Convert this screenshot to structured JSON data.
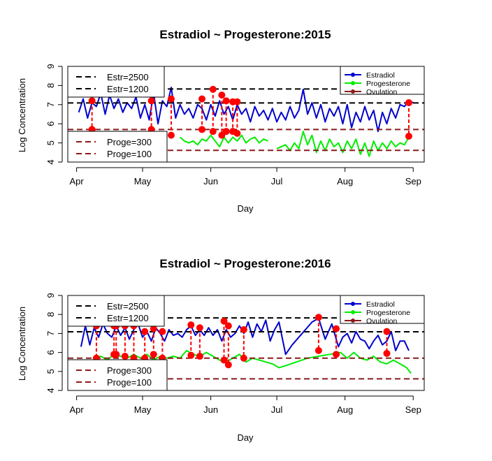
{
  "chart_data": [
    {
      "type": "line",
      "title": "Estradiol ~ Progesterone:2015",
      "xlabel": "Day",
      "ylabel": "Log Concentration",
      "ylim": [
        4,
        9
      ],
      "yticks": [
        4,
        5,
        6,
        7,
        8,
        9
      ],
      "xlim": [
        "2015-03-28",
        "2015-09-06"
      ],
      "xticks": [
        {
          "date": "2015-04-01",
          "label": "Apr"
        },
        {
          "date": "2015-05-01",
          "label": "May"
        },
        {
          "date": "2015-06-01",
          "label": "Jun"
        },
        {
          "date": "2015-07-01",
          "label": "Jul"
        },
        {
          "date": "2015-08-01",
          "label": "Aug"
        },
        {
          "date": "2015-09-01",
          "label": "Sep"
        }
      ],
      "reference_lines": [
        {
          "label": "Estr=2500",
          "value": 7.82,
          "color": "#000000"
        },
        {
          "label": "Estr=1200",
          "value": 7.09,
          "color": "#000000"
        },
        {
          "label": "Proge=300",
          "value": 5.7,
          "color": "#8b1a1a"
        },
        {
          "label": "Proge=100",
          "value": 4.61,
          "color": "#8b1a1a"
        }
      ],
      "legend_top_left": [
        "Estr=2500",
        "Estr=1200"
      ],
      "legend_bottom_left": [
        "Proge=300",
        "Proge=100"
      ],
      "legend_right": [
        {
          "label": "Estradiol",
          "color": "#0000cd"
        },
        {
          "label": "Progesterone",
          "color": "#00ee00"
        },
        {
          "label": "Ovulation",
          "color": "#8b1a1a"
        }
      ],
      "series": [
        {
          "name": "Estradiol",
          "color": "#0000cd",
          "x": [
            "2015-04-02",
            "2015-04-04",
            "2015-04-06",
            "2015-04-08",
            "2015-04-10",
            "2015-04-12",
            "2015-04-14",
            "2015-04-16",
            "2015-04-18",
            "2015-04-20",
            "2015-04-22",
            "2015-04-24",
            "2015-04-26",
            "2015-04-28",
            "2015-04-30",
            "2015-05-02",
            "2015-05-04",
            "2015-05-06",
            "2015-05-08",
            "2015-05-10",
            "2015-05-12",
            "2015-05-14",
            "2015-05-16",
            "2015-05-18",
            "2015-05-20",
            "2015-05-22",
            "2015-05-24",
            "2015-05-26",
            "2015-05-28",
            "2015-05-30",
            "2015-06-01",
            "2015-06-03",
            "2015-06-05",
            "2015-06-07",
            "2015-06-09",
            "2015-06-11",
            "2015-06-13",
            "2015-06-15",
            "2015-06-17",
            "2015-06-19",
            "2015-06-21",
            "2015-06-23",
            "2015-06-25",
            "2015-06-27",
            "2015-06-29",
            "2015-07-01",
            "2015-07-03",
            "2015-07-05",
            "2015-07-07",
            "2015-07-09",
            "2015-07-11",
            "2015-07-13",
            "2015-07-15",
            "2015-07-17",
            "2015-07-19",
            "2015-07-21",
            "2015-07-23",
            "2015-07-25",
            "2015-07-27",
            "2015-07-29",
            "2015-07-31",
            "2015-08-02",
            "2015-08-04",
            "2015-08-06",
            "2015-08-08",
            "2015-08-10",
            "2015-08-12",
            "2015-08-14",
            "2015-08-16",
            "2015-08-18",
            "2015-08-20",
            "2015-08-22",
            "2015-08-24",
            "2015-08-26",
            "2015-08-28",
            "2015-08-30",
            "2015-09-01"
          ],
          "values": [
            6.6,
            7.3,
            6.3,
            7.1,
            6.9,
            7.6,
            6.5,
            7.5,
            6.8,
            7.3,
            6.6,
            7.1,
            6.8,
            7.4,
            6.3,
            7.0,
            6.2,
            7.6,
            6.0,
            7.2,
            6.9,
            7.9,
            6.3,
            7.0,
            6.5,
            6.8,
            6.3,
            7.0,
            6.8,
            6.2,
            7.0,
            6.4,
            7.2,
            6.5,
            6.9,
            6.2,
            7.0,
            6.5,
            6.8,
            6.1,
            6.9,
            6.4,
            6.7,
            6.2,
            6.8,
            6.1,
            6.6,
            6.2,
            6.9,
            6.3,
            6.7,
            7.8,
            6.5,
            7.1,
            6.3,
            7.0,
            6.1,
            6.8,
            6.4,
            6.9,
            6.0,
            7.0,
            5.8,
            6.6,
            6.1,
            6.9,
            6.2,
            6.7,
            5.6,
            6.6,
            6.0,
            6.8,
            6.3,
            7.0,
            6.9,
            7.2,
            7.1
          ]
        },
        {
          "name": "Progesterone",
          "color": "#00ee00",
          "x": [
            "2015-05-18",
            "2015-05-20",
            "2015-05-22",
            "2015-05-24",
            "2015-05-26",
            "2015-05-28",
            "2015-05-30",
            "2015-06-01",
            "2015-06-03",
            "2015-06-05",
            "2015-06-07",
            "2015-06-09",
            "2015-06-11",
            "2015-06-13",
            "2015-06-15",
            "2015-06-17",
            "2015-06-19",
            "2015-06-21",
            "2015-06-23",
            "2015-06-25",
            "2015-06-27",
            "2015-06-29",
            "2015-07-01",
            "2015-07-03",
            "2015-07-05",
            "2015-07-07",
            "2015-07-09",
            "2015-07-11",
            "2015-07-13",
            "2015-07-15",
            "2015-07-17",
            "2015-07-19",
            "2015-07-21",
            "2015-07-23",
            "2015-07-25",
            "2015-07-27",
            "2015-07-29",
            "2015-07-31",
            "2015-08-02",
            "2015-08-04",
            "2015-08-06",
            "2015-08-08",
            "2015-08-10",
            "2015-08-12",
            "2015-08-14",
            "2015-08-16",
            "2015-08-18",
            "2015-08-20",
            "2015-08-22",
            "2015-08-24",
            "2015-08-26",
            "2015-08-28",
            "2015-08-30"
          ],
          "values": [
            5.3,
            5.1,
            5.0,
            5.1,
            4.9,
            5.2,
            5.1,
            5.4,
            5.1,
            4.8,
            5.3,
            5.0,
            5.3,
            5.1,
            5.4,
            5.0,
            5.2,
            5.3,
            5.0,
            5.2,
            5.1,
            null,
            4.7,
            4.8,
            4.9,
            4.6,
            5.0,
            4.7,
            5.6,
            4.9,
            5.4,
            4.5,
            5.1,
            4.6,
            5.2,
            4.8,
            5.0,
            4.5,
            5.1,
            4.7,
            5.2,
            4.4,
            5.0,
            4.3,
            5.1,
            4.6,
            5.0,
            4.7,
            5.1,
            4.8,
            5.0,
            4.9,
            5.3
          ]
        }
      ],
      "ovulation_markers": [
        {
          "x": "2015-04-08",
          "estradiol": 7.2,
          "progesterone": 5.7
        },
        {
          "x": "2015-05-05",
          "estradiol": 7.2,
          "progesterone": 5.7
        },
        {
          "x": "2015-05-14",
          "estradiol": 7.3,
          "progesterone": 5.4
        },
        {
          "x": "2015-05-28",
          "estradiol": 7.3,
          "progesterone": 5.7
        },
        {
          "x": "2015-06-02",
          "estradiol": 7.8,
          "progesterone": 5.6
        },
        {
          "x": "2015-06-06",
          "estradiol": 7.5,
          "progesterone": 5.4
        },
        {
          "x": "2015-06-08",
          "estradiol": 7.2,
          "progesterone": 5.6
        },
        {
          "x": "2015-06-11",
          "estradiol": 7.15,
          "progesterone": 5.6
        },
        {
          "x": "2015-06-13",
          "estradiol": 7.15,
          "progesterone": 5.5
        },
        {
          "x": "2015-08-30",
          "estradiol": 7.1,
          "progesterone": 5.35
        }
      ]
    },
    {
      "type": "line",
      "title": "Estradiol ~ Progesterone:2016",
      "xlabel": "Day",
      "ylabel": "Log Concentration",
      "ylim": [
        4,
        9
      ],
      "yticks": [
        4,
        5,
        6,
        7,
        8,
        9
      ],
      "xlim": [
        "2016-03-28",
        "2016-09-06"
      ],
      "xticks": [
        {
          "date": "2016-04-01",
          "label": "Apr"
        },
        {
          "date": "2016-05-01",
          "label": "May"
        },
        {
          "date": "2016-06-01",
          "label": "Jun"
        },
        {
          "date": "2016-07-01",
          "label": "Jul"
        },
        {
          "date": "2016-08-01",
          "label": "Aug"
        },
        {
          "date": "2016-09-01",
          "label": "Sep"
        }
      ],
      "reference_lines": [
        {
          "label": "Estr=2500",
          "value": 7.82,
          "color": "#000000"
        },
        {
          "label": "Estr=1200",
          "value": 7.09,
          "color": "#000000"
        },
        {
          "label": "Proge=300",
          "value": 5.7,
          "color": "#8b1a1a"
        },
        {
          "label": "Proge=100",
          "value": 4.61,
          "color": "#8b1a1a"
        }
      ],
      "legend_top_left": [
        "Estr=2500",
        "Estr=1200"
      ],
      "legend_bottom_left": [
        "Proge=300",
        "Proge=100"
      ],
      "legend_right": [
        {
          "label": "Estradiol",
          "color": "#0000cd"
        },
        {
          "label": "Progesterone",
          "color": "#00ee00"
        },
        {
          "label": "Ovulation",
          "color": "#8b1a1a"
        }
      ],
      "series": [
        {
          "name": "Estradiol",
          "color": "#0000cd",
          "x": [
            "2016-04-03",
            "2016-04-05",
            "2016-04-07",
            "2016-04-09",
            "2016-04-11",
            "2016-04-13",
            "2016-04-15",
            "2016-04-17",
            "2016-04-19",
            "2016-04-21",
            "2016-04-23",
            "2016-04-25",
            "2016-04-27",
            "2016-04-29",
            "2016-05-01",
            "2016-05-03",
            "2016-05-05",
            "2016-05-07",
            "2016-05-09",
            "2016-05-11",
            "2016-05-13",
            "2016-05-15",
            "2016-05-17",
            "2016-05-19",
            "2016-05-21",
            "2016-05-23",
            "2016-05-25",
            "2016-05-27",
            "2016-05-29",
            "2016-05-31",
            "2016-06-02",
            "2016-06-04",
            "2016-06-06",
            "2016-06-08",
            "2016-06-10",
            "2016-06-12",
            "2016-06-14",
            "2016-06-16",
            "2016-06-18",
            "2016-06-20",
            "2016-06-22",
            "2016-06-24",
            "2016-06-26",
            "2016-06-28",
            "2016-06-30",
            "2016-07-02",
            "2016-07-05",
            "2016-07-08",
            "2016-07-11",
            "2016-07-14",
            "2016-07-17",
            "2016-07-20",
            "2016-07-23",
            "2016-07-26",
            "2016-07-29",
            "2016-07-31",
            "2016-08-02",
            "2016-08-04",
            "2016-08-06",
            "2016-08-08",
            "2016-08-10",
            "2016-08-12",
            "2016-08-14",
            "2016-08-16",
            "2016-08-18",
            "2016-08-20",
            "2016-08-22",
            "2016-08-24",
            "2016-08-26",
            "2016-08-28",
            "2016-08-30"
          ],
          "values": [
            6.3,
            7.4,
            6.4,
            7.3,
            6.8,
            7.5,
            7.0,
            6.8,
            7.4,
            6.9,
            7.3,
            6.7,
            7.2,
            7.5,
            6.8,
            7.1,
            6.6,
            7.3,
            7.0,
            6.6,
            7.2,
            6.9,
            7.0,
            6.8,
            7.2,
            7.4,
            6.9,
            7.2,
            6.9,
            7.3,
            6.9,
            7.2,
            6.6,
            7.2,
            6.8,
            7.0,
            7.4,
            7.0,
            7.6,
            6.8,
            7.5,
            7.1,
            7.7,
            6.6,
            7.2,
            7.6,
            5.9,
            6.4,
            6.8,
            7.2,
            7.6,
            7.8,
            6.7,
            7.5,
            6.3,
            6.8,
            7.0,
            6.5,
            7.1,
            6.7,
            6.6,
            6.2,
            6.6,
            6.9,
            6.4,
            6.6,
            7.1,
            6.1,
            6.6,
            6.6,
            6.1
          ]
        },
        {
          "name": "Progesterone",
          "color": "#00ee00",
          "x": [
            "2016-04-09",
            "2016-04-12",
            "2016-04-15",
            "2016-04-18",
            "2016-04-21",
            "2016-04-24",
            "2016-04-27",
            "2016-04-30",
            "2016-05-03",
            "2016-05-06",
            "2016-05-09",
            "2016-05-12",
            "2016-05-15",
            "2016-05-18",
            "2016-05-21",
            "2016-05-24",
            "2016-05-27",
            "2016-05-30",
            "2016-06-02",
            "2016-06-05",
            "2016-06-08",
            "2016-06-11",
            "2016-06-14",
            "2016-06-17",
            "2016-06-20",
            "2016-06-23",
            "2016-06-26",
            "2016-06-29",
            "2016-07-02",
            "2016-07-05",
            "2016-07-10",
            "2016-07-15",
            "2016-07-20",
            "2016-07-25",
            "2016-07-30",
            "2016-08-02",
            "2016-08-05",
            "2016-08-08",
            "2016-08-11",
            "2016-08-14",
            "2016-08-17",
            "2016-08-20",
            "2016-08-23",
            "2016-08-26",
            "2016-08-29",
            "2016-08-31"
          ],
          "values": [
            5.7,
            5.8,
            5.6,
            5.9,
            5.8,
            5.7,
            5.9,
            5.7,
            5.9,
            5.6,
            5.8,
            5.7,
            5.8,
            5.7,
            6.1,
            5.9,
            5.8,
            6.0,
            5.8,
            5.6,
            5.5,
            5.7,
            5.9,
            5.5,
            5.7,
            5.6,
            5.5,
            5.4,
            5.2,
            5.3,
            5.5,
            5.7,
            5.8,
            5.9,
            6.0,
            5.7,
            6.0,
            5.7,
            5.6,
            5.8,
            5.5,
            5.4,
            5.6,
            5.4,
            5.2,
            4.9
          ]
        }
      ],
      "ovulation_markers": [
        {
          "x": "2016-04-10",
          "estradiol": 7.4,
          "progesterone": 5.7
        },
        {
          "x": "2016-04-18",
          "estradiol": 7.4,
          "progesterone": 5.9
        },
        {
          "x": "2016-04-19",
          "estradiol": 7.4,
          "progesterone": 5.9
        },
        {
          "x": "2016-04-23",
          "estradiol": 7.4,
          "progesterone": 5.8
        },
        {
          "x": "2016-04-27",
          "estradiol": 7.4,
          "progesterone": 5.7
        },
        {
          "x": "2016-05-02",
          "estradiol": 7.1,
          "progesterone": 5.7
        },
        {
          "x": "2016-05-06",
          "estradiol": 7.25,
          "progesterone": 5.9
        },
        {
          "x": "2016-05-10",
          "estradiol": 7.1,
          "progesterone": 5.7
        },
        {
          "x": "2016-05-23",
          "estradiol": 7.45,
          "progesterone": 5.85
        },
        {
          "x": "2016-05-27",
          "estradiol": 7.3,
          "progesterone": 5.8
        },
        {
          "x": "2016-06-07",
          "estradiol": 7.65,
          "progesterone": 5.6
        },
        {
          "x": "2016-06-09",
          "estradiol": 7.4,
          "progesterone": 5.35
        },
        {
          "x": "2016-06-16",
          "estradiol": 7.2,
          "progesterone": 5.7
        },
        {
          "x": "2016-07-20",
          "estradiol": 7.85,
          "progesterone": 6.1
        },
        {
          "x": "2016-07-28",
          "estradiol": 7.25,
          "progesterone": 5.9
        },
        {
          "x": "2016-08-20",
          "estradiol": 7.1,
          "progesterone": 5.95
        }
      ]
    }
  ]
}
